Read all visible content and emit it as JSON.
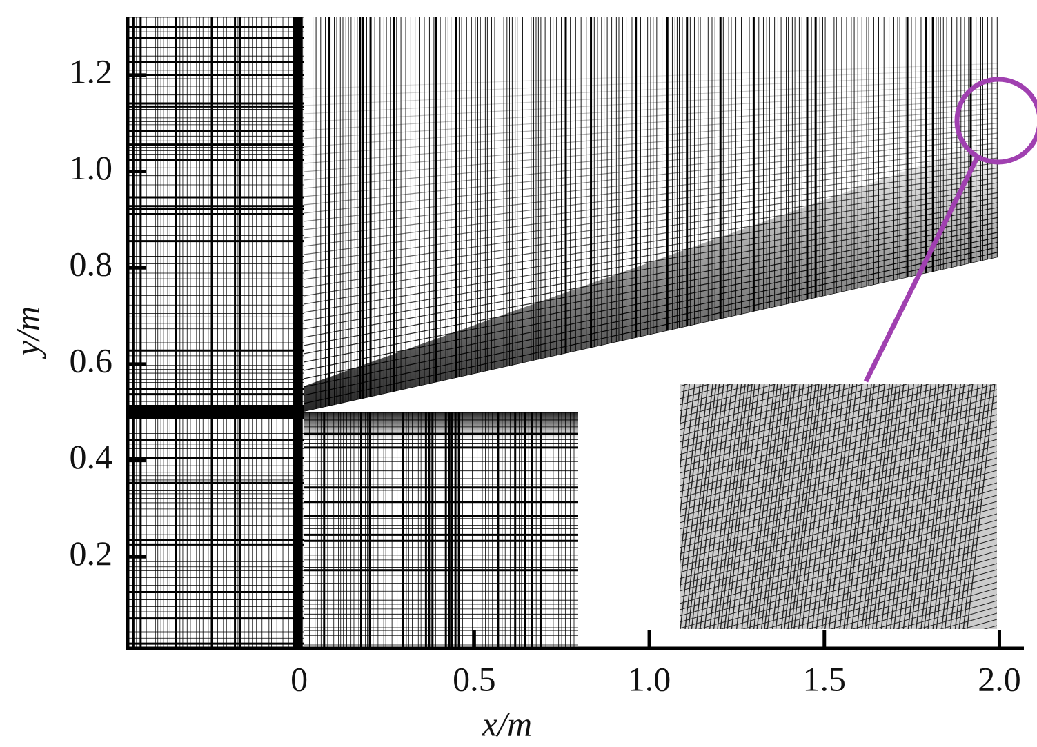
{
  "chart_data": {
    "type": "mesh",
    "xlabel": "x/m",
    "ylabel": "y/m",
    "xlim": [
      -0.49,
      2.07
    ],
    "ylim": [
      0.01,
      1.32
    ],
    "xticks": [
      0,
      0.5,
      {
        "value": 1,
        "label": "1.0"
      },
      1.5,
      {
        "value": 2,
        "label": "2.0"
      }
    ],
    "yticks": [
      0.2,
      0.4,
      0.6,
      0.8,
      {
        "value": 1,
        "label": "1.0"
      },
      1.2
    ]
  }
}
